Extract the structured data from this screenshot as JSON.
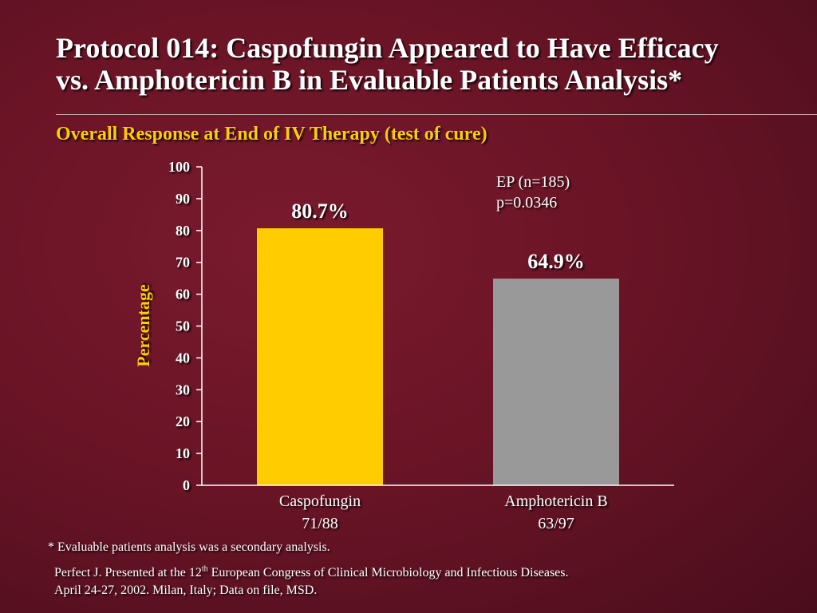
{
  "header": {
    "title_line1": "Protocol 014: Caspofungin Appeared to Have Efficacy",
    "title_line2": "vs. Amphotericin B in Evaluable Patients Analysis*",
    "subtitle": "Overall Response at End of IV Therapy (test of cure)"
  },
  "chart_data": {
    "type": "bar",
    "title": "",
    "xlabel": "",
    "ylabel": "Percentage",
    "ylim": [
      0,
      100
    ],
    "yticks": [
      "0",
      "10",
      "20",
      "30",
      "40",
      "50",
      "60",
      "70",
      "80",
      "90",
      "100"
    ],
    "categories": [
      "Caspofungin",
      "Amphotericin B"
    ],
    "category_sublabels": [
      "71/88",
      "63/97"
    ],
    "values": [
      80.7,
      64.9
    ],
    "data_labels": [
      "80.7%",
      "64.9%"
    ],
    "colors": [
      "#ffcc00",
      "#999999"
    ],
    "grid": false,
    "annotation": [
      "EP (n=185)",
      "p=0.0346"
    ]
  },
  "footnote": "* Evaluable patients analysis was a secondary analysis.",
  "reference": {
    "line1_a": "Perfect J. Presented at the 12",
    "line1_sup": "th",
    "line1_b": " European Congress of Clinical Microbiology and Infectious Diseases.",
    "line2": "April 24-27, 2002. Milan, Italy; Data on file, MSD."
  },
  "colors": {
    "background": "#6a1426",
    "accent": "#ffcc00",
    "text": "#ffffff"
  }
}
